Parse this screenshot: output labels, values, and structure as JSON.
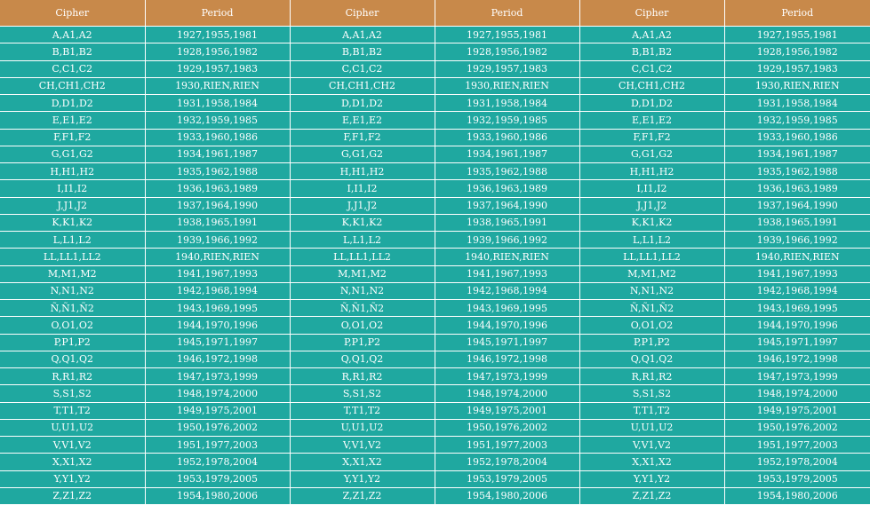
{
  "headers": [
    "Cipher",
    "Period",
    "Cipher",
    "Period",
    "Cipher",
    "Period"
  ],
  "rows": [
    [
      "A,A1,A2",
      "1927,1955,1981"
    ],
    [
      "B,B1,B2",
      "1928,1956,1982"
    ],
    [
      "C,C1,C2",
      "1929,1957,1983"
    ],
    [
      "CH,CH1,CH2",
      "1930,RIEN,RIEN"
    ],
    [
      "D,D1,D2",
      "1931,1958,1984"
    ],
    [
      "E,E1,E2",
      "1932,1959,1985"
    ],
    [
      "F,F1,F2",
      "1933,1960,1986"
    ],
    [
      "G,G1,G2",
      "1934,1961,1987"
    ],
    [
      "H,H1,H2",
      "1935,1962,1988"
    ],
    [
      "I,I1,I2",
      "1936,1963,1989"
    ],
    [
      "J,J1,J2",
      "1937,1964,1990"
    ],
    [
      "K,K1,K2",
      "1938,1965,1991"
    ],
    [
      "L,L1,L2",
      "1939,1966,1992"
    ],
    [
      "LL,LL1,LL2",
      "1940,RIEN,RIEN"
    ],
    [
      "M,M1,M2",
      "1941,1967,1993"
    ],
    [
      "N,N1,N2",
      "1942,1968,1994"
    ],
    [
      "Ñ,Ñ1,Ñ2",
      "1943,1969,1995"
    ],
    [
      "O,O1,O2",
      "1944,1970,1996"
    ],
    [
      "P,P1,P2",
      "1945,1971,1997"
    ],
    [
      "Q,Q1,Q2",
      "1946,1972,1998"
    ],
    [
      "R,R1,R2",
      "1947,1973,1999"
    ],
    [
      "S,S1,S2",
      "1948,1974,2000"
    ],
    [
      "T,T1,T2",
      "1949,1975,2001"
    ],
    [
      "U,U1,U2",
      "1950,1976,2002"
    ],
    [
      "V,V1,V2",
      "1951,1977,2003"
    ],
    [
      "X,X1,X2",
      "1952,1978,2004"
    ],
    [
      "Y,Y1,Y2",
      "1953,1979,2005"
    ],
    [
      "Z,Z1,Z2",
      "1954,1980,2006"
    ]
  ],
  "colors": {
    "header_bg": "#c8894a",
    "cell_bg": "#1fa8a0",
    "text": "#ffffff"
  }
}
